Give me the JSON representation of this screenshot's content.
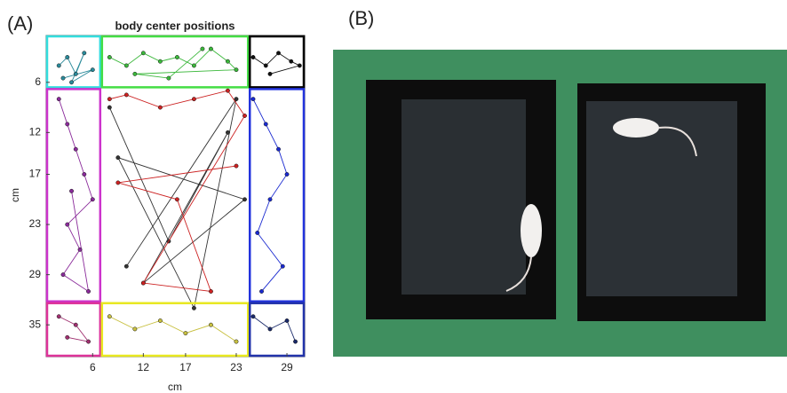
{
  "panel_labels": [
    "(A)",
    "(B)"
  ],
  "chart_data": {
    "type": "scatter",
    "title": "body center positions",
    "x_label": "cm",
    "y_label": "cm",
    "xlim": [
      0.5,
      31.1
    ],
    "ylim": [
      0.4,
      38.8
    ],
    "y_inverted": true,
    "xticks": [
      6,
      12,
      17,
      23,
      29
    ],
    "yticks": [
      6,
      12,
      17,
      23,
      29,
      35
    ],
    "zones": [
      {
        "x": [
          0.5,
          7
        ],
        "y": [
          0.4,
          6.7
        ],
        "color": "#33dddd"
      },
      {
        "x": [
          7,
          24.5
        ],
        "y": [
          0.4,
          6.7
        ],
        "color": "#44dd44"
      },
      {
        "x": [
          24.5,
          31.1
        ],
        "y": [
          0.4,
          6.7
        ],
        "color": "#000000"
      },
      {
        "x": [
          0.5,
          7
        ],
        "y": [
          6.7,
          32.3
        ],
        "color": "#cc33cc"
      },
      {
        "x": [
          24.5,
          31.1
        ],
        "y": [
          6.7,
          32.3
        ],
        "color": "#2233dd"
      },
      {
        "x": [
          0.5,
          7
        ],
        "y": [
          32.3,
          38.8
        ],
        "color": "#dd3399"
      },
      {
        "x": [
          7,
          24.5
        ],
        "y": [
          32.3,
          38.8
        ],
        "color": "#e8e820"
      },
      {
        "x": [
          24.5,
          31.1
        ],
        "y": [
          32.3,
          38.8
        ],
        "color": "#2233aa"
      }
    ],
    "series": [
      {
        "color": "#2a8a9a",
        "x": [
          2,
          3,
          4,
          5,
          3.5,
          6,
          2.5
        ],
        "y": [
          4,
          3,
          5,
          2.5,
          6,
          4.5,
          5.5
        ]
      },
      {
        "color": "#3cb83c",
        "x": [
          8,
          10,
          12,
          14,
          16,
          18,
          20,
          22,
          23,
          11,
          15,
          19
        ],
        "y": [
          3,
          4,
          2.5,
          3.5,
          3,
          4,
          2,
          3.5,
          4.5,
          5,
          5.5,
          2
        ]
      },
      {
        "color": "#111111",
        "x": [
          25,
          26.5,
          28,
          29.5,
          30.5,
          27
        ],
        "y": [
          3,
          4,
          2.5,
          3.5,
          4,
          5
        ]
      },
      {
        "color": "#8a2a9a",
        "x": [
          2,
          3,
          4,
          5,
          6,
          3,
          4.5,
          2.5,
          5.5,
          3.5
        ],
        "y": [
          8,
          11,
          14,
          17,
          20,
          23,
          26,
          29,
          31,
          19
        ]
      },
      {
        "color": "#333333",
        "x": [
          8,
          15,
          22,
          12,
          24,
          9,
          18,
          23,
          10
        ],
        "y": [
          9,
          25,
          12,
          30,
          20,
          15,
          33,
          8,
          28
        ]
      },
      {
        "color": "#cc2222",
        "x": [
          8,
          10,
          14,
          18,
          22,
          24,
          12,
          20,
          16,
          9,
          23
        ],
        "y": [
          8,
          7.5,
          9,
          8,
          7,
          10,
          30,
          31,
          20,
          18,
          16
        ]
      },
      {
        "color": "#1a2ad0",
        "x": [
          25,
          26.5,
          28,
          29,
          27,
          25.5,
          28.5,
          26
        ],
        "y": [
          8,
          11,
          14,
          17,
          20,
          24,
          28,
          31
        ]
      },
      {
        "color": "#a03070",
        "x": [
          2,
          4,
          5.5,
          3
        ],
        "y": [
          34,
          35,
          37,
          36.5
        ]
      },
      {
        "color": "#c8c040",
        "x": [
          8,
          11,
          14,
          17,
          20,
          23
        ],
        "y": [
          34,
          35.5,
          34.5,
          36,
          35,
          37
        ]
      },
      {
        "color": "#1a2a6a",
        "x": [
          25,
          27,
          29,
          30
        ],
        "y": [
          34,
          35.5,
          34.5,
          37
        ]
      }
    ]
  }
}
